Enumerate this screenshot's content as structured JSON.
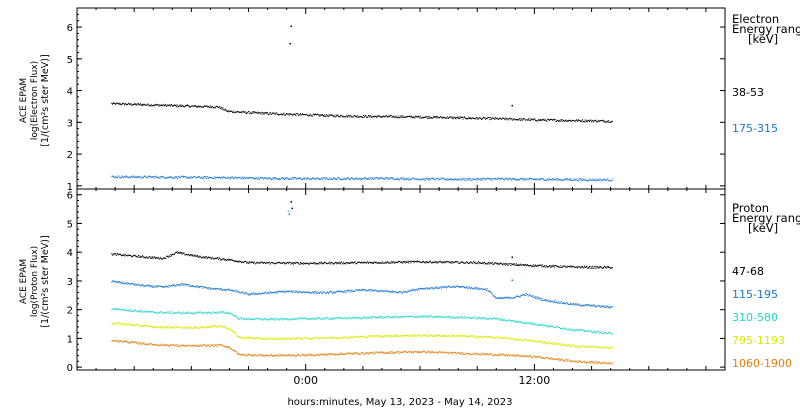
{
  "chart_data": [
    {
      "type": "scatter",
      "panel": "electron",
      "ylabel_lines": [
        "ACE EPAM",
        "log(Electron Flux)",
        "[1/(cm²s ster MeV)]"
      ],
      "legend_title_lines": [
        "Electron",
        "Energy range",
        "[keV]"
      ],
      "ylim": [
        0.9,
        6.6
      ],
      "yticks": [
        "1",
        "2",
        "3",
        "4",
        "5",
        "6"
      ],
      "series": [
        {
          "name": "38-53",
          "color": "#000000",
          "points": [
            [
              -10.2,
              3.6
            ],
            [
              -9,
              3.58
            ],
            [
              -7.5,
              3.55
            ],
            [
              -6,
              3.52
            ],
            [
              -4.6,
              3.5
            ],
            [
              -4.1,
              3.36
            ],
            [
              -3,
              3.32
            ],
            [
              -1.5,
              3.28
            ],
            [
              0,
              3.25
            ],
            [
              1.5,
              3.22
            ],
            [
              3,
              3.2
            ],
            [
              5,
              3.19
            ],
            [
              7,
              3.17
            ],
            [
              9,
              3.14
            ],
            [
              10.5,
              3.12
            ],
            [
              12,
              3.09
            ],
            [
              14,
              3.07
            ],
            [
              16,
              3.05
            ],
            [
              16.1,
              3.04
            ]
          ],
          "outliers": [
            [
              -0.8,
              6.05
            ],
            [
              -0.85,
              5.5
            ],
            [
              10.8,
              3.55
            ]
          ]
        },
        {
          "name": "175-315",
          "color": "#1a75cf",
          "points": [
            [
              -10.2,
              1.3
            ],
            [
              -8,
              1.29
            ],
            [
              -6,
              1.28
            ],
            [
              -4,
              1.27
            ],
            [
              -2,
              1.25
            ],
            [
              0,
              1.24
            ],
            [
              2,
              1.24
            ],
            [
              4,
              1.25
            ],
            [
              6,
              1.23
            ],
            [
              8,
              1.22
            ],
            [
              10,
              1.23
            ],
            [
              12,
              1.22
            ],
            [
              14,
              1.21
            ],
            [
              16.1,
              1.2
            ]
          ],
          "outliers": [
            [
              -1,
              1.0
            ]
          ]
        }
      ]
    },
    {
      "type": "scatter",
      "panel": "proton",
      "ylabel_lines": [
        "ACE EPAM",
        "log(Proton Flux)",
        "[1/(cm²s ster MeV)]"
      ],
      "legend_title_lines": [
        "Proton",
        "Energy range",
        "[keV]"
      ],
      "ylim": [
        -0.1,
        6.2
      ],
      "yticks": [
        "0",
        "1",
        "2",
        "3",
        "4",
        "5",
        "6"
      ],
      "xtick_labels": [
        "0:00",
        "12:00"
      ],
      "xlabel": "hours:minutes, May 13, 2023 - May 14, 2023",
      "xlim_hours": [
        -12,
        22
      ],
      "series": [
        {
          "name": "47-68",
          "color": "#000000",
          "points": [
            [
              -10.2,
              3.95
            ],
            [
              -8.5,
              3.85
            ],
            [
              -7.5,
              3.8
            ],
            [
              -6.8,
              4.0
            ],
            [
              -5.5,
              3.85
            ],
            [
              -4,
              3.75
            ],
            [
              -3,
              3.65
            ],
            [
              0,
              3.63
            ],
            [
              3,
              3.65
            ],
            [
              6,
              3.68
            ],
            [
              9,
              3.65
            ],
            [
              11,
              3.58
            ],
            [
              12,
              3.55
            ],
            [
              14,
              3.5
            ],
            [
              16.1,
              3.48
            ]
          ],
          "outliers": [
            [
              -0.8,
              5.78
            ],
            [
              -0.75,
              5.55
            ],
            [
              10.8,
              3.85
            ]
          ]
        },
        {
          "name": "115-195",
          "color": "#1a75cf",
          "points": [
            [
              -10.2,
              3.0
            ],
            [
              -8.5,
              2.85
            ],
            [
              -7.5,
              2.8
            ],
            [
              -6.5,
              2.9
            ],
            [
              -5,
              2.75
            ],
            [
              -4,
              2.7
            ],
            [
              -3,
              2.55
            ],
            [
              -1,
              2.65
            ],
            [
              1,
              2.6
            ],
            [
              3,
              2.7
            ],
            [
              5,
              2.62
            ],
            [
              6,
              2.75
            ],
            [
              8,
              2.82
            ],
            [
              9.5,
              2.72
            ],
            [
              10,
              2.4
            ],
            [
              11,
              2.45
            ],
            [
              11.5,
              2.55
            ],
            [
              12.5,
              2.35
            ],
            [
              14,
              2.2
            ],
            [
              16.1,
              2.1
            ]
          ],
          "outliers": [
            [
              -0.9,
              5.35
            ],
            [
              10.8,
              3.05
            ]
          ]
        },
        {
          "name": "310-580",
          "color": "#28d7c8",
          "points": [
            [
              -10.2,
              2.05
            ],
            [
              -8,
              1.92
            ],
            [
              -6,
              1.9
            ],
            [
              -4.5,
              1.92
            ],
            [
              -4,
              1.9
            ],
            [
              -3.5,
              1.7
            ],
            [
              -2,
              1.68
            ],
            [
              0,
              1.7
            ],
            [
              2,
              1.72
            ],
            [
              4,
              1.75
            ],
            [
              6,
              1.78
            ],
            [
              8,
              1.75
            ],
            [
              10,
              1.7
            ],
            [
              11,
              1.6
            ],
            [
              12,
              1.52
            ],
            [
              14,
              1.32
            ],
            [
              16.1,
              1.18
            ]
          ],
          "outliers": [
            [
              -0.95,
              5.45
            ]
          ]
        },
        {
          "name": "795-1193",
          "color": "#d8e800",
          "points": [
            [
              -10.2,
              1.55
            ],
            [
              -8,
              1.42
            ],
            [
              -6,
              1.38
            ],
            [
              -4.5,
              1.45
            ],
            [
              -4,
              1.35
            ],
            [
              -3.5,
              1.05
            ],
            [
              -2,
              1.0
            ],
            [
              0,
              1.02
            ],
            [
              2,
              1.05
            ],
            [
              4,
              1.1
            ],
            [
              6,
              1.12
            ],
            [
              8,
              1.1
            ],
            [
              10,
              1.05
            ],
            [
              12,
              0.92
            ],
            [
              14,
              0.75
            ],
            [
              16.1,
              0.68
            ]
          ],
          "outliers": []
        },
        {
          "name": "1060-1900",
          "color": "#e08010",
          "points": [
            [
              -10.2,
              0.95
            ],
            [
              -8,
              0.8
            ],
            [
              -6,
              0.75
            ],
            [
              -4.5,
              0.78
            ],
            [
              -4,
              0.7
            ],
            [
              -3.5,
              0.45
            ],
            [
              -2,
              0.42
            ],
            [
              0,
              0.43
            ],
            [
              2,
              0.48
            ],
            [
              4,
              0.52
            ],
            [
              6,
              0.55
            ],
            [
              8,
              0.5
            ],
            [
              10,
              0.45
            ],
            [
              12,
              0.38
            ],
            [
              14,
              0.22
            ],
            [
              16.1,
              0.15
            ]
          ],
          "outliers": []
        }
      ]
    }
  ]
}
